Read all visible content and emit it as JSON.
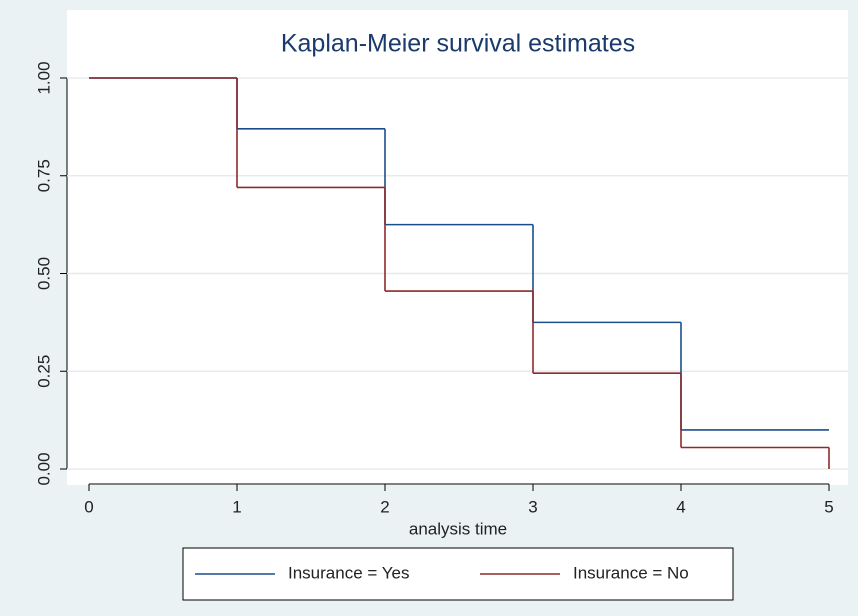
{
  "chart_data": {
    "type": "step",
    "title": "Kaplan-Meier survival estimates",
    "x_label": "analysis time",
    "x": [
      0,
      1,
      2,
      3,
      4,
      5
    ],
    "series": [
      {
        "name": "Insurance = Yes",
        "color": "#1a4f8b",
        "values": [
          1,
          0.87,
          0.625,
          0.375,
          0.1,
          0.1
        ]
      },
      {
        "name": "Insurance = No",
        "color": "#8e2a2a",
        "values": [
          1,
          0.72,
          0.455,
          0.245,
          0.055,
          0
        ]
      }
    ],
    "xlim": [
      0,
      5
    ],
    "xticks": [
      0,
      1,
      2,
      3,
      4,
      5
    ],
    "ylim": [
      0,
      1
    ],
    "yticks": [
      {
        "value": 0,
        "label": "0.00"
      },
      {
        "value": 0.25,
        "label": "0.25"
      },
      {
        "value": 0.5,
        "label": "0.50"
      },
      {
        "value": 0.75,
        "label": "0.75"
      },
      {
        "value": 1,
        "label": "1.00"
      }
    ],
    "grid": true,
    "legend": "bottom"
  }
}
